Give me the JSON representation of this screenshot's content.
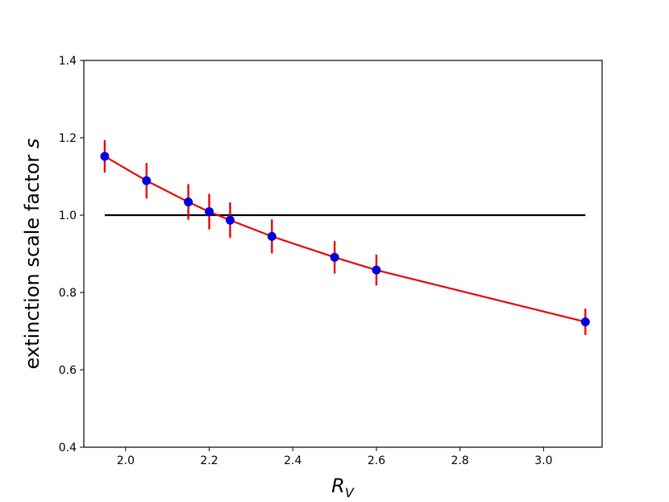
{
  "chart_data": {
    "type": "scatter",
    "xlabel": "R",
    "xlabel_sub": "V",
    "ylabel": "extinction scale factor ",
    "ylabel_var": "s",
    "xlim": [
      1.9,
      3.14
    ],
    "ylim": [
      0.4,
      1.4
    ],
    "x_ticks": [
      "2.0",
      "2.2",
      "2.4",
      "2.6",
      "2.8",
      "3.0"
    ],
    "x_tick_values": [
      2.0,
      2.2,
      2.4,
      2.6,
      2.8,
      3.0
    ],
    "y_ticks": [
      "0.4",
      "0.6",
      "0.8",
      "1.0",
      "1.2",
      "1.4"
    ],
    "y_tick_values": [
      0.4,
      0.6,
      0.8,
      1.0,
      1.2,
      1.4
    ],
    "reference_line": {
      "y": 1.0,
      "x_range": [
        1.95,
        3.1
      ],
      "color": "#000000"
    },
    "series": [
      {
        "marker_color": "#0000dd",
        "line_color": "#ee0000",
        "errorbar_color": "#ee0000",
        "x": [
          1.95,
          2.05,
          2.15,
          2.2,
          2.25,
          2.35,
          2.5,
          2.6,
          3.1
        ],
        "y": [
          1.152,
          1.089,
          1.034,
          1.009,
          0.987,
          0.945,
          0.891,
          0.858,
          0.724
        ],
        "err": [
          0.042,
          0.046,
          0.046,
          0.046,
          0.046,
          0.044,
          0.042,
          0.04,
          0.034
        ]
      }
    ]
  }
}
